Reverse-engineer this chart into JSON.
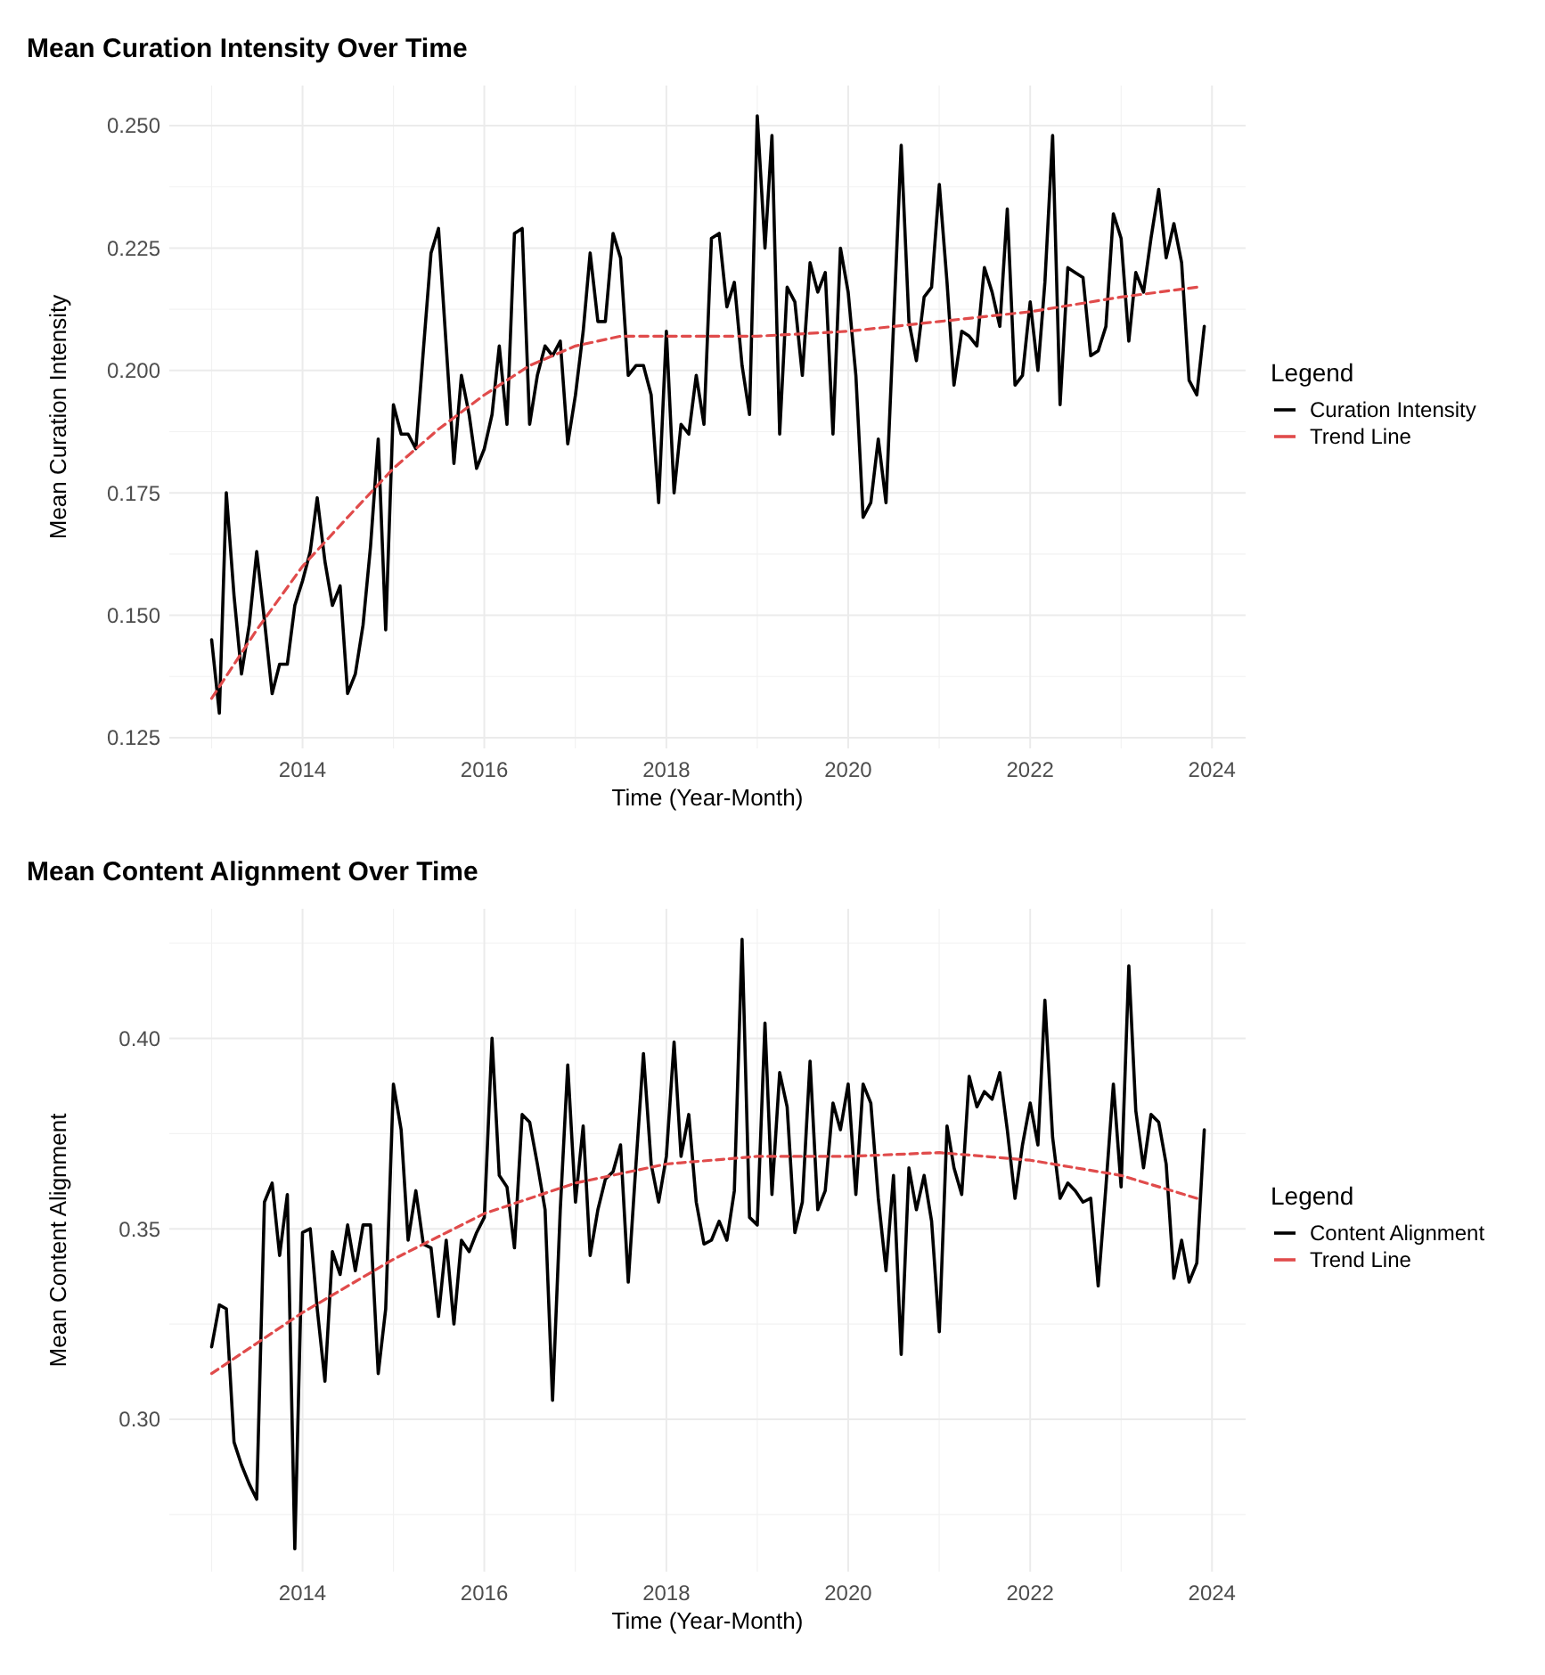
{
  "chart_data": [
    {
      "type": "line",
      "title": "Mean Curation Intensity Over Time",
      "xlabel": "Time (Year-Month)",
      "ylabel": "Mean Curation Intensity",
      "legend_title": "Legend",
      "legend": "right",
      "grid": true,
      "x": [
        "2013-01",
        "2013-02",
        "2013-03",
        "2013-04",
        "2013-05",
        "2013-06",
        "2013-07",
        "2013-08",
        "2013-09",
        "2013-10",
        "2013-11",
        "2013-12",
        "2014-01",
        "2014-02",
        "2014-03",
        "2014-04",
        "2014-05",
        "2014-06",
        "2014-07",
        "2014-08",
        "2014-09",
        "2014-10",
        "2014-11",
        "2014-12",
        "2015-01",
        "2015-02",
        "2015-03",
        "2015-04",
        "2015-05",
        "2015-06",
        "2015-07",
        "2015-08",
        "2015-09",
        "2015-10",
        "2015-11",
        "2015-12",
        "2016-01",
        "2016-02",
        "2016-03",
        "2016-04",
        "2016-05",
        "2016-06",
        "2016-07",
        "2016-08",
        "2016-09",
        "2016-10",
        "2016-11",
        "2016-12",
        "2017-01",
        "2017-02",
        "2017-03",
        "2017-04",
        "2017-05",
        "2017-06",
        "2017-07",
        "2017-08",
        "2017-09",
        "2017-10",
        "2017-11",
        "2017-12",
        "2018-01",
        "2018-02",
        "2018-03",
        "2018-04",
        "2018-05",
        "2018-06",
        "2018-07",
        "2018-08",
        "2018-09",
        "2018-10",
        "2018-11",
        "2018-12",
        "2019-01",
        "2019-02",
        "2019-03",
        "2019-04",
        "2019-05",
        "2019-06",
        "2019-07",
        "2019-08",
        "2019-09",
        "2019-10",
        "2019-11",
        "2019-12",
        "2020-01",
        "2020-02",
        "2020-03",
        "2020-04",
        "2020-05",
        "2020-06",
        "2020-07",
        "2020-08",
        "2020-09",
        "2020-10",
        "2020-11",
        "2020-12",
        "2021-01",
        "2021-02",
        "2021-03",
        "2021-04",
        "2021-05",
        "2021-06",
        "2021-07",
        "2021-08",
        "2021-09",
        "2021-10",
        "2021-11",
        "2021-12",
        "2022-01",
        "2022-02",
        "2022-03",
        "2022-04",
        "2022-05",
        "2022-06",
        "2022-07",
        "2022-08",
        "2022-09",
        "2022-10",
        "2022-11",
        "2022-12",
        "2023-01",
        "2023-02",
        "2023-03",
        "2023-04",
        "2023-05",
        "2023-06",
        "2023-07",
        "2023-08",
        "2023-09",
        "2023-10",
        "2023-11",
        "2023-12"
      ],
      "xlim": [
        "2012-07-15",
        "2024-05-15"
      ],
      "xticks": [
        {
          "value": "2014",
          "label": "2014"
        },
        {
          "value": "2016",
          "label": "2016"
        },
        {
          "value": "2018",
          "label": "2018"
        },
        {
          "value": "2020",
          "label": "2020"
        },
        {
          "value": "2022",
          "label": "2022"
        },
        {
          "value": "2024",
          "label": "2024"
        }
      ],
      "ylim": [
        0.1228,
        0.2582
      ],
      "yticks": [
        0.125,
        {
          "value": 0.15,
          "label": "0.150"
        },
        0.175,
        {
          "value": 0.2,
          "label": "0.200"
        },
        0.225,
        {
          "value": 0.25,
          "label": "0.250"
        }
      ],
      "series": [
        {
          "name": "Curation Intensity",
          "color": "#000000",
          "line_style": "solid",
          "values": [
            0.145,
            0.13,
            0.175,
            0.154,
            0.138,
            0.148,
            0.163,
            0.149,
            0.134,
            0.14,
            0.14,
            0.152,
            0.157,
            0.163,
            0.174,
            0.161,
            0.152,
            0.156,
            0.134,
            0.138,
            0.148,
            0.164,
            0.186,
            0.147,
            0.193,
            0.187,
            0.187,
            0.184,
            0.204,
            0.224,
            0.229,
            0.205,
            0.181,
            0.199,
            0.191,
            0.18,
            0.184,
            0.191,
            0.205,
            0.189,
            0.228,
            0.229,
            0.189,
            0.199,
            0.205,
            0.203,
            0.206,
            0.185,
            0.195,
            0.208,
            0.224,
            0.21,
            0.21,
            0.228,
            0.223,
            0.199,
            0.201,
            0.201,
            0.195,
            0.173,
            0.208,
            0.175,
            0.189,
            0.187,
            0.199,
            0.189,
            0.227,
            0.228,
            0.213,
            0.218,
            0.201,
            0.191,
            0.252,
            0.225,
            0.248,
            0.187,
            0.217,
            0.214,
            0.199,
            0.222,
            0.216,
            0.22,
            0.187,
            0.225,
            0.216,
            0.199,
            0.17,
            0.173,
            0.186,
            0.173,
            0.209,
            0.246,
            0.21,
            0.202,
            0.215,
            0.217,
            0.238,
            0.218,
            0.197,
            0.208,
            0.207,
            0.205,
            0.221,
            0.216,
            0.209,
            0.233,
            0.197,
            0.199,
            0.214,
            0.2,
            0.218,
            0.248,
            0.193,
            0.221,
            0.22,
            0.219,
            0.203,
            0.204,
            0.209,
            0.232,
            0.227,
            0.206,
            0.22,
            0.216,
            0.227,
            0.237,
            0.223,
            0.23,
            0.222,
            0.198,
            0.195,
            0.209
          ]
        },
        {
          "name": "Trend Line",
          "color": "#e04b4b",
          "type": "line",
          "line_style": "dashed",
          "x": [
            "2013-01",
            "2013-07",
            "2014-01",
            "2014-07",
            "2015-01",
            "2015-07",
            "2016-01",
            "2016-07",
            "2017-01",
            "2017-07",
            "2018-01",
            "2019-01",
            "2020-01",
            "2021-01",
            "2022-01",
            "2023-01",
            "2023-11"
          ],
          "values": [
            0.133,
            0.147,
            0.16,
            0.17,
            0.18,
            0.188,
            0.195,
            0.201,
            0.205,
            0.207,
            0.207,
            0.207,
            0.208,
            0.21,
            0.212,
            0.215,
            0.217
          ]
        }
      ]
    },
    {
      "type": "line",
      "title": "Mean Content Alignment Over Time",
      "xlabel": "Time (Year-Month)",
      "ylabel": "Mean Content Alignment",
      "legend_title": "Legend",
      "legend": "right",
      "grid": true,
      "x": [
        "2013-01",
        "2013-02",
        "2013-03",
        "2013-04",
        "2013-05",
        "2013-06",
        "2013-07",
        "2013-08",
        "2013-09",
        "2013-10",
        "2013-11",
        "2013-12",
        "2014-01",
        "2014-02",
        "2014-03",
        "2014-04",
        "2014-05",
        "2014-06",
        "2014-07",
        "2014-08",
        "2014-09",
        "2014-10",
        "2014-11",
        "2014-12",
        "2015-01",
        "2015-02",
        "2015-03",
        "2015-04",
        "2015-05",
        "2015-06",
        "2015-07",
        "2015-08",
        "2015-09",
        "2015-10",
        "2015-11",
        "2015-12",
        "2016-01",
        "2016-02",
        "2016-03",
        "2016-04",
        "2016-05",
        "2016-06",
        "2016-07",
        "2016-08",
        "2016-09",
        "2016-10",
        "2016-11",
        "2016-12",
        "2017-01",
        "2017-02",
        "2017-03",
        "2017-04",
        "2017-05",
        "2017-06",
        "2017-07",
        "2017-08",
        "2017-09",
        "2017-10",
        "2017-11",
        "2017-12",
        "2018-01",
        "2018-02",
        "2018-03",
        "2018-04",
        "2018-05",
        "2018-06",
        "2018-07",
        "2018-08",
        "2018-09",
        "2018-10",
        "2018-11",
        "2018-12",
        "2019-01",
        "2019-02",
        "2019-03",
        "2019-04",
        "2019-05",
        "2019-06",
        "2019-07",
        "2019-08",
        "2019-09",
        "2019-10",
        "2019-11",
        "2019-12",
        "2020-01",
        "2020-02",
        "2020-03",
        "2020-04",
        "2020-05",
        "2020-06",
        "2020-07",
        "2020-08",
        "2020-09",
        "2020-10",
        "2020-11",
        "2020-12",
        "2021-01",
        "2021-02",
        "2021-03",
        "2021-04",
        "2021-05",
        "2021-06",
        "2021-07",
        "2021-08",
        "2021-09",
        "2021-10",
        "2021-11",
        "2021-12",
        "2022-01",
        "2022-02",
        "2022-03",
        "2022-04",
        "2022-05",
        "2022-06",
        "2022-07",
        "2022-08",
        "2022-09",
        "2022-10",
        "2022-11",
        "2022-12",
        "2023-01",
        "2023-02",
        "2023-03",
        "2023-04",
        "2023-05",
        "2023-06",
        "2023-07",
        "2023-08",
        "2023-09",
        "2023-10",
        "2023-11",
        "2023-12"
      ],
      "xlim": [
        "2012-07-15",
        "2024-05-15"
      ],
      "xticks": [
        {
          "value": "2014",
          "label": "2014"
        },
        {
          "value": "2016",
          "label": "2016"
        },
        {
          "value": "2018",
          "label": "2018"
        },
        {
          "value": "2020",
          "label": "2020"
        },
        {
          "value": "2022",
          "label": "2022"
        },
        {
          "value": "2024",
          "label": "2024"
        }
      ],
      "ylim": [
        0.26,
        0.434
      ],
      "yticks": [
        {
          "value": 0.3,
          "label": "0.30"
        },
        0.35,
        {
          "value": 0.4,
          "label": "0.40"
        }
      ],
      "series": [
        {
          "name": "Content Alignment",
          "color": "#000000",
          "line_style": "solid",
          "values": [
            0.319,
            0.33,
            0.329,
            0.294,
            0.288,
            0.283,
            0.279,
            0.357,
            0.362,
            0.343,
            0.359,
            0.266,
            0.349,
            0.35,
            0.329,
            0.31,
            0.344,
            0.338,
            0.351,
            0.339,
            0.351,
            0.351,
            0.312,
            0.329,
            0.388,
            0.376,
            0.347,
            0.36,
            0.346,
            0.345,
            0.327,
            0.347,
            0.325,
            0.347,
            0.344,
            0.349,
            0.353,
            0.4,
            0.364,
            0.361,
            0.345,
            0.38,
            0.378,
            0.367,
            0.355,
            0.305,
            0.355,
            0.393,
            0.357,
            0.377,
            0.343,
            0.355,
            0.363,
            0.365,
            0.372,
            0.336,
            0.367,
            0.396,
            0.367,
            0.357,
            0.369,
            0.399,
            0.369,
            0.38,
            0.357,
            0.346,
            0.347,
            0.352,
            0.347,
            0.36,
            0.426,
            0.353,
            0.351,
            0.404,
            0.359,
            0.391,
            0.382,
            0.349,
            0.357,
            0.394,
            0.355,
            0.36,
            0.383,
            0.376,
            0.388,
            0.359,
            0.388,
            0.383,
            0.358,
            0.339,
            0.364,
            0.317,
            0.366,
            0.355,
            0.364,
            0.352,
            0.323,
            0.377,
            0.366,
            0.359,
            0.39,
            0.382,
            0.386,
            0.384,
            0.391,
            0.376,
            0.358,
            0.372,
            0.383,
            0.372,
            0.41,
            0.374,
            0.358,
            0.362,
            0.36,
            0.357,
            0.358,
            0.335,
            0.361,
            0.388,
            0.361,
            0.419,
            0.381,
            0.366,
            0.38,
            0.378,
            0.367,
            0.337,
            0.347,
            0.336,
            0.341,
            0.376
          ]
        },
        {
          "name": "Trend Line",
          "color": "#e04b4b",
          "type": "line",
          "line_style": "dashed",
          "x": [
            "2013-01",
            "2014-01",
            "2015-01",
            "2016-01",
            "2017-01",
            "2018-01",
            "2019-01",
            "2020-01",
            "2021-01",
            "2022-01",
            "2023-01",
            "2023-11"
          ],
          "values": [
            0.312,
            0.328,
            0.342,
            0.354,
            0.362,
            0.367,
            0.369,
            0.369,
            0.37,
            0.368,
            0.364,
            0.358
          ]
        }
      ]
    }
  ]
}
